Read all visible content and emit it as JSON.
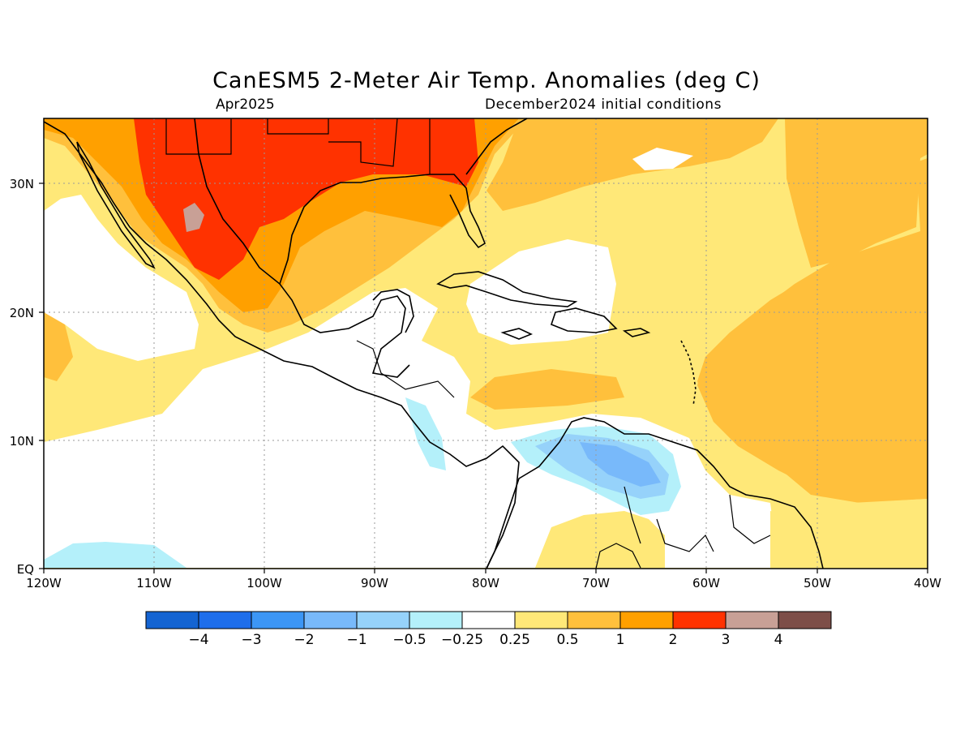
{
  "title": "CanESM5 2-Meter Air Temp. Anomalies (deg C)",
  "valid_month": "Apr2025",
  "initial_conditions": "December2024 initial conditions",
  "lon_labels": [
    "120W",
    "110W",
    "100W",
    "90W",
    "80W",
    "70W",
    "60W",
    "50W",
    "40W"
  ],
  "lat_labels": [
    "EQ",
    "10N",
    "20N",
    "30N"
  ],
  "colorbar": {
    "tick_labels": [
      "−4",
      "−3",
      "−2",
      "−1",
      "−0.5",
      "−0.25",
      "0.25",
      "0.5",
      "1",
      "2",
      "3",
      "4"
    ],
    "colors": [
      "#1464d2",
      "#1e6eeb",
      "#3c96f5",
      "#78b9fa",
      "#96d2fa",
      "#b4f0fa",
      "#ffffff",
      "#ffe878",
      "#ffc03c",
      "#ffa000",
      "#ff3200",
      "#c8a096",
      "#7d4e48"
    ]
  },
  "legend_field_colors": {
    "bg": "#ffe878",
    "half_to_one": "#ffc03c",
    "one_to_two": "#ffa000",
    "two_to_three": "#ff3200",
    "over_three": "#c8a096",
    "neutral": "#ffffff",
    "neg_small": "#b4f0fa",
    "neg_mid": "#96d2fa",
    "neg_large": "#78b9fa"
  }
}
